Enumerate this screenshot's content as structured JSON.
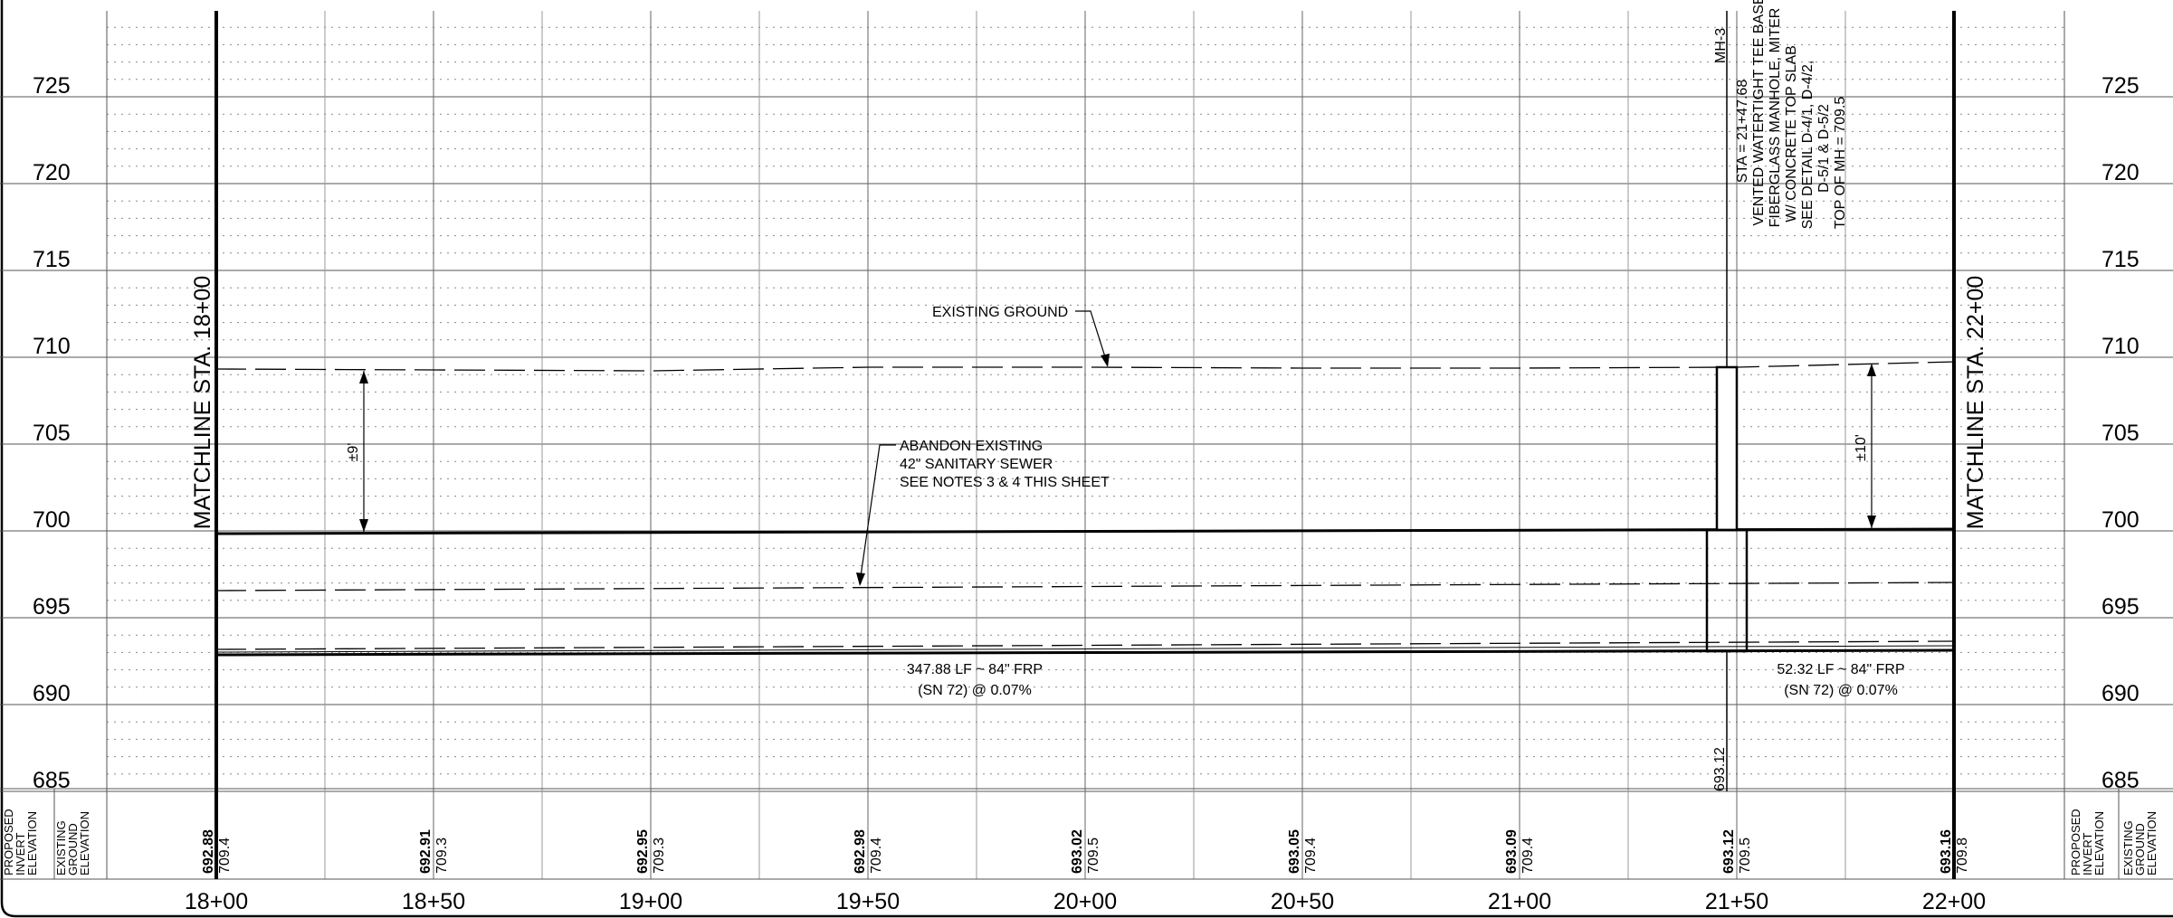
{
  "elevations": {
    "left": [
      "725",
      "720",
      "715",
      "710",
      "705",
      "700",
      "695",
      "690",
      "685"
    ],
    "right": [
      "725",
      "720",
      "715",
      "710",
      "705",
      "700",
      "695",
      "690",
      "685"
    ]
  },
  "stations": [
    "18+00",
    "18+50",
    "19+00",
    "19+50",
    "20+00",
    "20+50",
    "21+00",
    "21+50",
    "22+00"
  ],
  "bottom_table": {
    "row_headers_left": [
      "PROPOSED\nINVERT\nELEVATION",
      "EXISTING\nGROUND\nELEVATION"
    ],
    "row_headers_right": [
      "PROPOSED\nINVERT\nELEVATION",
      "EXISTING\nGROUND\nELEVATION"
    ],
    "invert": [
      "692.88",
      "692.91",
      "692.95",
      "692.98",
      "693.02",
      "693.05",
      "693.09",
      "693.12",
      "693.16"
    ],
    "ground": [
      "709.4",
      "709.3",
      "709.3",
      "709.4",
      "709.5",
      "709.4",
      "709.4",
      "709.5",
      "709.8"
    ]
  },
  "matchlines": {
    "left": "MATCHLINE STA. 18+00",
    "right": "MATCHLINE STA. 22+00"
  },
  "labels": {
    "existing_ground": "EXISTING GROUND",
    "abandon": [
      "ABANDON EXISTING",
      "42\" SANITARY SEWER",
      "SEE NOTES 3 & 4 THIS SHEET"
    ],
    "pipe1": [
      "347.88 LF ~ 84\" FRP",
      "(SN 72) @ 0.07%"
    ],
    "pipe2": [
      "52.32 LF ~ 84\" FRP",
      "(SN 72) @ 0.07%"
    ],
    "cover_left": "±9'",
    "cover_right": "±10'",
    "mh_invert": "693.12"
  },
  "manhole": {
    "lines": [
      "MH-3",
      "STA = 21+47.68",
      "VENTED WATERTIGHT TEE BASE",
      "FIBERGLASS MANHOLE, MITER",
      "W/ CONCRETE TOP SLAB",
      "SEE DETAIL D-4/1, D-4/2,",
      "D-5/1 & D-5/2",
      "TOP OF MH = 709.5"
    ]
  }
}
